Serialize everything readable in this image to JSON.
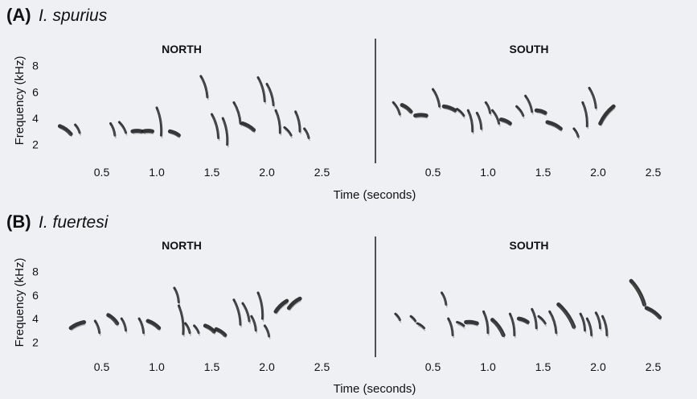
{
  "panels": [
    {
      "letter": "(A)",
      "species": "I. spurius",
      "y_axis_title": "Frequency (kHz)",
      "x_axis_title": "Time (seconds)",
      "y_ticks": [
        "2",
        "4",
        "6",
        "8"
      ],
      "regions": [
        {
          "label": "NORTH",
          "x_ticks": [
            "0.5",
            "1.0",
            "1.5",
            "2.0",
            "2.5"
          ],
          "syllables": [
            {
              "t": [
                0.12,
                0.22
              ],
              "f": [
                3.4,
                2.8
              ]
            },
            {
              "t": [
                0.26,
                0.3
              ],
              "f": [
                3.5,
                2.9
              ]
            },
            {
              "t": [
                0.58,
                0.62
              ],
              "f": [
                3.6,
                2.7
              ]
            },
            {
              "t": [
                0.66,
                0.72
              ],
              "f": [
                3.7,
                2.9
              ]
            },
            {
              "t": [
                0.78,
                0.86
              ],
              "f": [
                3.0,
                3.0
              ]
            },
            {
              "t": [
                0.88,
                0.96
              ],
              "f": [
                3.0,
                3.0
              ]
            },
            {
              "t": [
                1.0,
                1.04
              ],
              "f": [
                4.8,
                2.7
              ]
            },
            {
              "t": [
                1.12,
                1.2
              ],
              "f": [
                3.0,
                2.7
              ]
            },
            {
              "t": [
                1.4,
                1.46
              ],
              "f": [
                7.2,
                5.6
              ]
            },
            {
              "t": [
                1.5,
                1.56
              ],
              "f": [
                4.3,
                2.5
              ]
            },
            {
              "t": [
                1.6,
                1.64
              ],
              "f": [
                4.0,
                2.0
              ]
            },
            {
              "t": [
                1.7,
                1.76
              ],
              "f": [
                5.2,
                3.6
              ]
            },
            {
              "t": [
                1.78,
                1.88
              ],
              "f": [
                3.6,
                3.1
              ]
            },
            {
              "t": [
                1.92,
                1.98
              ],
              "f": [
                7.1,
                5.3
              ]
            },
            {
              "t": [
                2.0,
                2.06
              ],
              "f": [
                6.6,
                5.0
              ]
            },
            {
              "t": [
                2.08,
                2.12
              ],
              "f": [
                4.6,
                2.9
              ]
            },
            {
              "t": [
                2.16,
                2.22
              ],
              "f": [
                3.3,
                2.7
              ]
            },
            {
              "t": [
                2.26,
                2.3
              ],
              "f": [
                4.5,
                3.0
              ]
            },
            {
              "t": [
                2.34,
                2.38
              ],
              "f": [
                3.2,
                2.5
              ]
            }
          ]
        },
        {
          "label": "SOUTH",
          "x_ticks": [
            "0.5",
            "1.0",
            "1.5",
            "2.0",
            "2.5"
          ],
          "syllables": [
            {
              "t": [
                0.14,
                0.2
              ],
              "f": [
                5.2,
                4.3
              ]
            },
            {
              "t": [
                0.22,
                0.3
              ],
              "f": [
                5.0,
                4.5
              ]
            },
            {
              "t": [
                0.34,
                0.44
              ],
              "f": [
                4.2,
                4.2
              ]
            },
            {
              "t": [
                0.5,
                0.56
              ],
              "f": [
                6.2,
                4.9
              ]
            },
            {
              "t": [
                0.6,
                0.7
              ],
              "f": [
                4.9,
                4.6
              ]
            },
            {
              "t": [
                0.72,
                0.78
              ],
              "f": [
                4.7,
                4.2
              ]
            },
            {
              "t": [
                0.82,
                0.86
              ],
              "f": [
                4.6,
                3.0
              ]
            },
            {
              "t": [
                0.9,
                0.94
              ],
              "f": [
                4.4,
                3.2
              ]
            },
            {
              "t": [
                0.98,
                1.02
              ],
              "f": [
                5.2,
                4.4
              ]
            },
            {
              "t": [
                1.04,
                1.1
              ],
              "f": [
                4.6,
                3.6
              ]
            },
            {
              "t": [
                1.12,
                1.2
              ],
              "f": [
                3.9,
                3.6
              ]
            },
            {
              "t": [
                1.26,
                1.32
              ],
              "f": [
                4.9,
                4.2
              ]
            },
            {
              "t": [
                1.34,
                1.4
              ],
              "f": [
                5.7,
                4.5
              ]
            },
            {
              "t": [
                1.44,
                1.52
              ],
              "f": [
                4.6,
                4.4
              ]
            },
            {
              "t": [
                1.54,
                1.66
              ],
              "f": [
                3.7,
                3.2
              ]
            },
            {
              "t": [
                1.78,
                1.82
              ],
              "f": [
                3.2,
                2.6
              ]
            },
            {
              "t": [
                1.86,
                1.9
              ],
              "f": [
                5.2,
                3.4
              ]
            },
            {
              "t": [
                1.92,
                1.98
              ],
              "f": [
                6.3,
                4.8
              ]
            },
            {
              "t": [
                2.02,
                2.14
              ],
              "f": [
                3.6,
                4.9
              ]
            }
          ]
        }
      ]
    },
    {
      "letter": "(B)",
      "species": "I. fuertesi",
      "y_axis_title": "Frequency (kHz)",
      "x_axis_title": "Time (seconds)",
      "y_ticks": [
        "2",
        "4",
        "6",
        "8"
      ],
      "regions": [
        {
          "label": "NORTH",
          "x_ticks": [
            "0.5",
            "1.0",
            "1.5",
            "2.0",
            "2.5"
          ],
          "syllables": [
            {
              "t": [
                0.22,
                0.34
              ],
              "f": [
                3.2,
                3.7
              ]
            },
            {
              "t": [
                0.44,
                0.48
              ],
              "f": [
                3.8,
                2.8
              ]
            },
            {
              "t": [
                0.56,
                0.64
              ],
              "f": [
                4.3,
                3.6
              ]
            },
            {
              "t": [
                0.68,
                0.72
              ],
              "f": [
                4.0,
                3.0
              ]
            },
            {
              "t": [
                0.84,
                0.88
              ],
              "f": [
                4.0,
                2.8
              ]
            },
            {
              "t": [
                0.92,
                1.02
              ],
              "f": [
                3.8,
                3.2
              ]
            },
            {
              "t": [
                1.16,
                1.2
              ],
              "f": [
                6.6,
                5.4
              ]
            },
            {
              "t": [
                1.2,
                1.24
              ],
              "f": [
                5.1,
                2.7
              ]
            },
            {
              "t": [
                1.26,
                1.3
              ],
              "f": [
                3.6,
                2.8
              ]
            },
            {
              "t": [
                1.34,
                1.38
              ],
              "f": [
                3.4,
                2.8
              ]
            },
            {
              "t": [
                1.44,
                1.52
              ],
              "f": [
                3.4,
                2.9
              ]
            },
            {
              "t": [
                1.54,
                1.62
              ],
              "f": [
                3.1,
                2.6
              ]
            },
            {
              "t": [
                1.7,
                1.76
              ],
              "f": [
                5.6,
                3.5
              ]
            },
            {
              "t": [
                1.78,
                1.84
              ],
              "f": [
                5.3,
                3.8
              ]
            },
            {
              "t": [
                1.86,
                1.9
              ],
              "f": [
                4.2,
                3.0
              ]
            },
            {
              "t": [
                1.92,
                1.96
              ],
              "f": [
                6.2,
                4.0
              ]
            },
            {
              "t": [
                1.98,
                2.02
              ],
              "f": [
                3.4,
                2.5
              ]
            },
            {
              "t": [
                2.08,
                2.18
              ],
              "f": [
                4.6,
                5.5
              ]
            },
            {
              "t": [
                2.2,
                2.3
              ],
              "f": [
                4.9,
                5.7
              ]
            }
          ]
        },
        {
          "label": "SOUTH",
          "x_ticks": [
            "0.5",
            "1.0",
            "1.5",
            "2.0",
            "2.5"
          ],
          "syllables": [
            {
              "t": [
                0.16,
                0.2
              ],
              "f": [
                4.4,
                3.9
              ]
            },
            {
              "t": [
                0.3,
                0.34
              ],
              "f": [
                4.2,
                3.8
              ]
            },
            {
              "t": [
                0.36,
                0.42
              ],
              "f": [
                3.6,
                3.2
              ]
            },
            {
              "t": [
                0.58,
                0.62
              ],
              "f": [
                6.2,
                5.2
              ]
            },
            {
              "t": [
                0.64,
                0.68
              ],
              "f": [
                4.0,
                2.6
              ]
            },
            {
              "t": [
                0.72,
                0.78
              ],
              "f": [
                3.7,
                3.4
              ]
            },
            {
              "t": [
                0.8,
                0.9
              ],
              "f": [
                3.7,
                3.6
              ]
            },
            {
              "t": [
                0.96,
                1.0
              ],
              "f": [
                4.6,
                2.8
              ]
            },
            {
              "t": [
                1.04,
                1.14
              ],
              "f": [
                3.9,
                2.6
              ]
            },
            {
              "t": [
                1.2,
                1.24
              ],
              "f": [
                4.4,
                2.6
              ]
            },
            {
              "t": [
                1.28,
                1.36
              ],
              "f": [
                4.0,
                3.7
              ]
            },
            {
              "t": [
                1.4,
                1.44
              ],
              "f": [
                4.8,
                3.2
              ]
            },
            {
              "t": [
                1.46,
                1.52
              ],
              "f": [
                4.2,
                3.6
              ]
            },
            {
              "t": [
                1.56,
                1.62
              ],
              "f": [
                4.6,
                2.8
              ]
            },
            {
              "t": [
                1.64,
                1.78
              ],
              "f": [
                5.2,
                3.3
              ]
            },
            {
              "t": [
                1.84,
                1.88
              ],
              "f": [
                4.4,
                3.0
              ]
            },
            {
              "t": [
                1.9,
                1.94
              ],
              "f": [
                4.0,
                2.6
              ]
            },
            {
              "t": [
                1.98,
                2.02
              ],
              "f": [
                4.5,
                3.2
              ]
            },
            {
              "t": [
                2.04,
                2.08
              ],
              "f": [
                4.2,
                2.6
              ]
            },
            {
              "t": [
                2.3,
                2.42
              ],
              "f": [
                7.2,
                5.2
              ]
            },
            {
              "t": [
                2.44,
                2.56
              ],
              "f": [
                4.9,
                4.1
              ]
            }
          ]
        }
      ]
    }
  ]
}
